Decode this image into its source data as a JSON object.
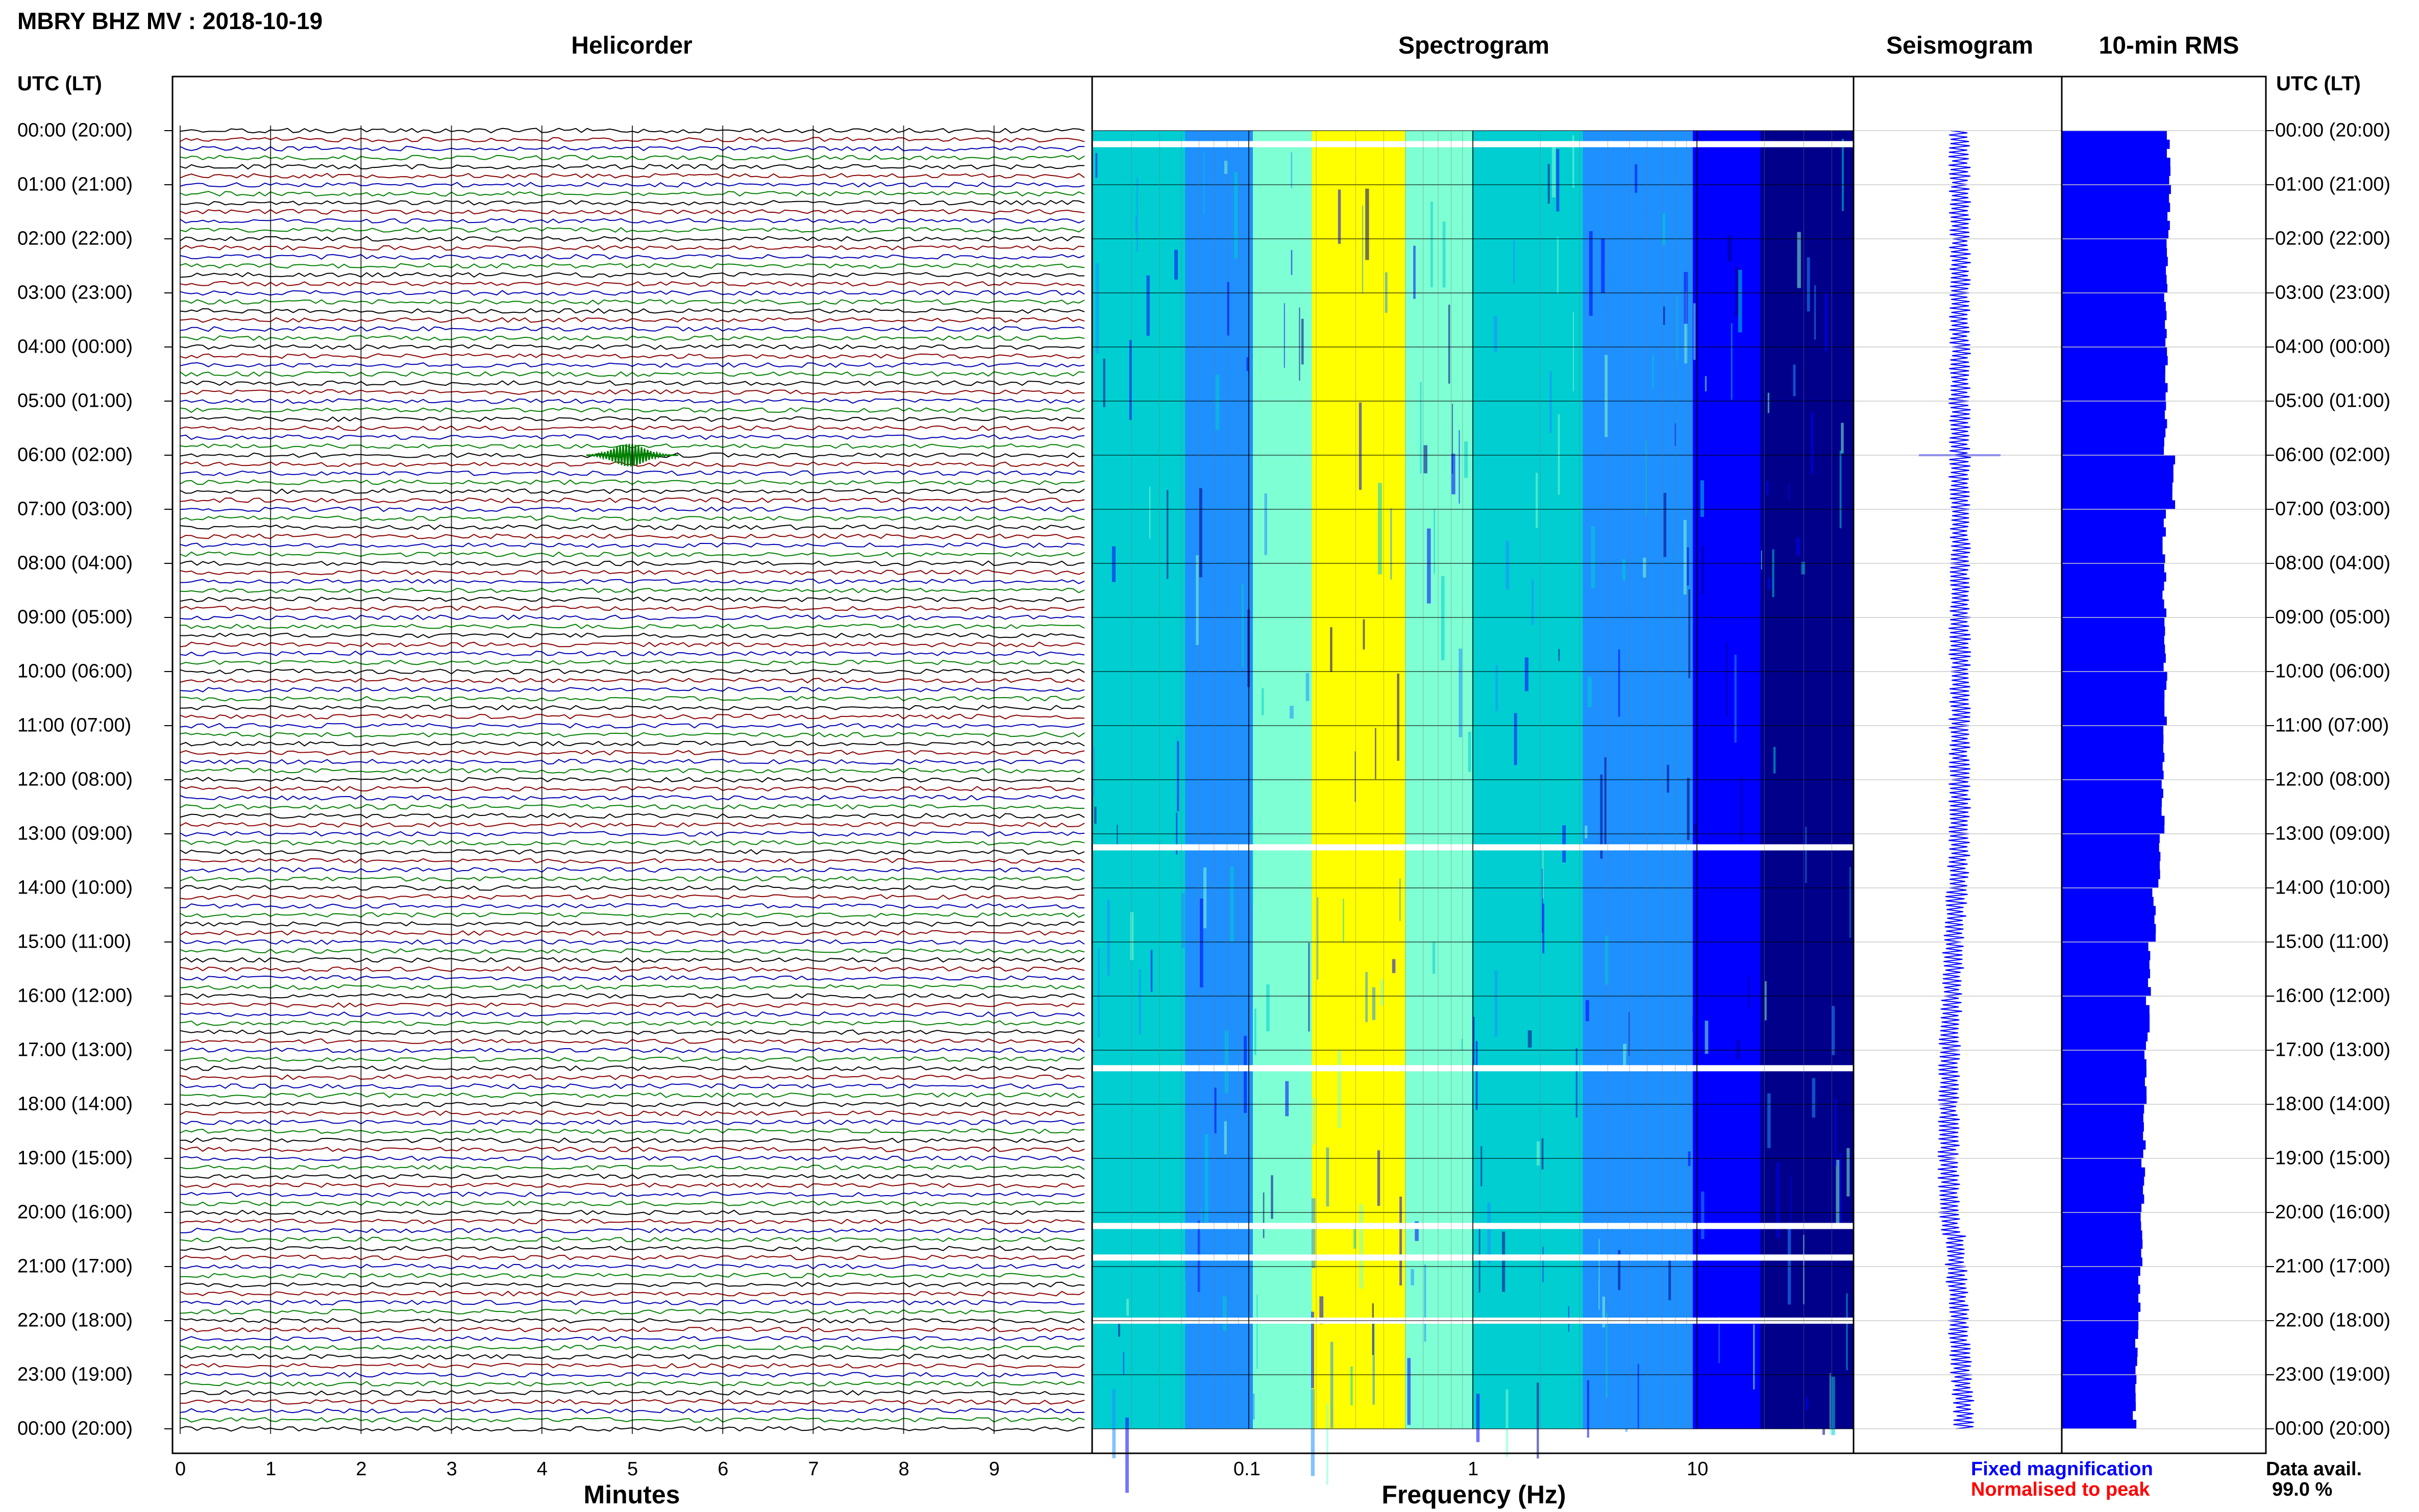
{
  "header": {
    "title": "MBRY BHZ MV : 2018-10-19"
  },
  "panels": {
    "helicorder": "Helicorder",
    "spectrogram": "Spectrogram",
    "seismogram": "Seismogram",
    "rms": "10-min RMS"
  },
  "time_axis": {
    "header_left": "UTC (LT)",
    "header_right": "UTC (LT)",
    "labels": [
      "00:00 (20:00)",
      "01:00 (21:00)",
      "02:00 (22:00)",
      "03:00 (23:00)",
      "04:00 (00:00)",
      "05:00 (01:00)",
      "06:00 (02:00)",
      "07:00 (03:00)",
      "08:00 (04:00)",
      "09:00 (05:00)",
      "10:00 (06:00)",
      "11:00 (07:00)",
      "12:00 (08:00)",
      "13:00 (09:00)",
      "14:00 (10:00)",
      "15:00 (11:00)",
      "16:00 (12:00)",
      "17:00 (13:00)",
      "18:00 (14:00)",
      "19:00 (15:00)",
      "20:00 (16:00)",
      "21:00 (17:00)",
      "22:00 (18:00)",
      "23:00 (19:00)",
      "00:00 (20:00)"
    ]
  },
  "legend": {
    "fixed": "Fixed magnification",
    "normalised": "Normalised to peak",
    "fixed_color": "#0000ff",
    "normalised_color": "#ff0000"
  },
  "availability": {
    "label": "Data avail.",
    "value": "99.0 %"
  },
  "chart_data": [
    {
      "type": "line",
      "name": "helicorder",
      "title": "Helicorder",
      "xlabel": "Minutes",
      "x_ticks": [
        "0",
        "1",
        "2",
        "3",
        "4",
        "5",
        "6",
        "7",
        "8",
        "9"
      ],
      "xlim": [
        0,
        10
      ],
      "trace_colors": [
        "#000000",
        "#8b0000",
        "#0000b4",
        "#008000"
      ],
      "traces_per_hour": 6,
      "hours": 24,
      "events": [
        {
          "time_utc": "06:00",
          "minute": 5.0,
          "description": "larger amplitude signal"
        }
      ]
    },
    {
      "type": "heatmap",
      "name": "spectrogram",
      "title": "Spectrogram",
      "xlabel": "Frequency (Hz)",
      "x_scale": "log",
      "xlim": [
        0.02,
        50
      ],
      "x_ticks": [
        "0.1",
        "1",
        "10"
      ],
      "colormap": [
        "#00008b",
        "#0000ff",
        "#1e90ff",
        "#00ced1",
        "#7fffd4",
        "#ffff00",
        "#ffa500"
      ],
      "peak_band_hz": [
        0.2,
        0.5
      ],
      "gaps_utc": [
        "00:15",
        "13:15",
        "17:20",
        "20:15",
        "20:50",
        "22:00"
      ]
    },
    {
      "type": "line",
      "name": "seismogram",
      "title": "Seismogram",
      "color": "#0000ff"
    },
    {
      "type": "bar",
      "name": "rms",
      "title": "10-min RMS",
      "color": "#0000ff",
      "orientation": "horizontal",
      "hourly_values": [
        1.0,
        1.0,
        0.98,
        0.97,
        0.98,
        0.97,
        1.05,
        0.96,
        0.96,
        0.97,
        0.97,
        0.95,
        0.94,
        0.92,
        0.86,
        0.82,
        0.8,
        0.79,
        0.77,
        0.76,
        0.74,
        0.72,
        0.7,
        0.68
      ]
    }
  ]
}
